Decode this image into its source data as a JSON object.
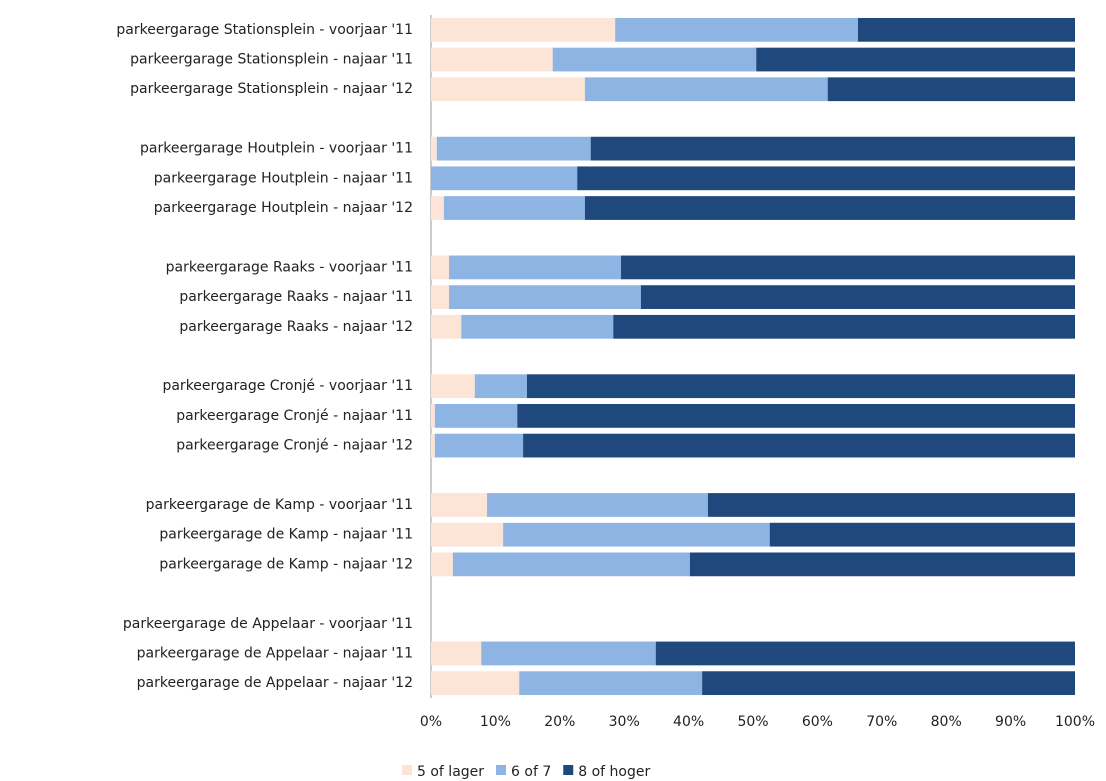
{
  "chart_data": {
    "type": "stacked_barh",
    "categories": [
      "parkeergarage Stationsplein - voorjaar '11",
      "parkeergarage Stationsplein - najaar '11",
      "parkeergarage Stationsplein - najaar '12",
      null,
      "parkeergarage Houtplein - voorjaar '11",
      "parkeergarage Houtplein - najaar '11",
      "parkeergarage Houtplein - najaar '12",
      null,
      "parkeergarage Raaks - voorjaar '11",
      "parkeergarage Raaks - najaar '11",
      "parkeergarage Raaks - najaar '12",
      null,
      "parkeergarage Cronjé - voorjaar '11",
      "parkeergarage Cronjé - najaar '11",
      "parkeergarage Cronjé - najaar '12",
      null,
      "parkeergarage de Kamp - voorjaar '11",
      "parkeergarage de Kamp - najaar '11",
      "parkeergarage de Kamp - najaar '12",
      null,
      "parkeergarage de Appelaar - voorjaar '11",
      "parkeergarage de Appelaar - najaar '11",
      "parkeergarage de Appelaar - najaar '12"
    ],
    "series": [
      {
        "name": "5 of lager",
        "color": "#fce4d6",
        "values": [
          28.6,
          18.9,
          23.9,
          null,
          0.9,
          0,
          2.0,
          null,
          2.8,
          2.8,
          4.7,
          null,
          6.8,
          0.6,
          0.6,
          null,
          8.7,
          11.2,
          3.4,
          null,
          null,
          7.8,
          13.7
        ]
      },
      {
        "name": "6 of 7",
        "color": "#8eb4e3",
        "values": [
          37.7,
          31.6,
          37.7,
          null,
          23.9,
          22.7,
          21.9,
          null,
          26.7,
          29.8,
          23.6,
          null,
          8.1,
          12.8,
          13.7,
          null,
          34.3,
          41.4,
          36.8,
          null,
          null,
          27.1,
          28.4
        ]
      },
      {
        "name": "8 of hoger",
        "color": "#1f497d",
        "values": [
          33.7,
          49.5,
          38.4,
          null,
          75.2,
          77.3,
          76.1,
          null,
          70.5,
          67.4,
          71.7,
          null,
          85.1,
          86.6,
          85.7,
          null,
          57.0,
          47.4,
          59.8,
          null,
          null,
          65.1,
          57.9
        ]
      }
    ],
    "xlim": [
      0,
      100
    ],
    "xticks": [
      {
        "value": 0,
        "label": "0%"
      },
      {
        "value": 10,
        "label": "10%"
      },
      {
        "value": 20,
        "label": "20%"
      },
      {
        "value": 30,
        "label": "30%"
      },
      {
        "value": 40,
        "label": "40%"
      },
      {
        "value": 50,
        "label": "50%"
      },
      {
        "value": 60,
        "label": "60%"
      },
      {
        "value": 70,
        "label": "70%"
      },
      {
        "value": 80,
        "label": "80%"
      },
      {
        "value": 90,
        "label": "90%"
      },
      {
        "value": 100,
        "label": "100%"
      }
    ],
    "legend": "bottom"
  }
}
